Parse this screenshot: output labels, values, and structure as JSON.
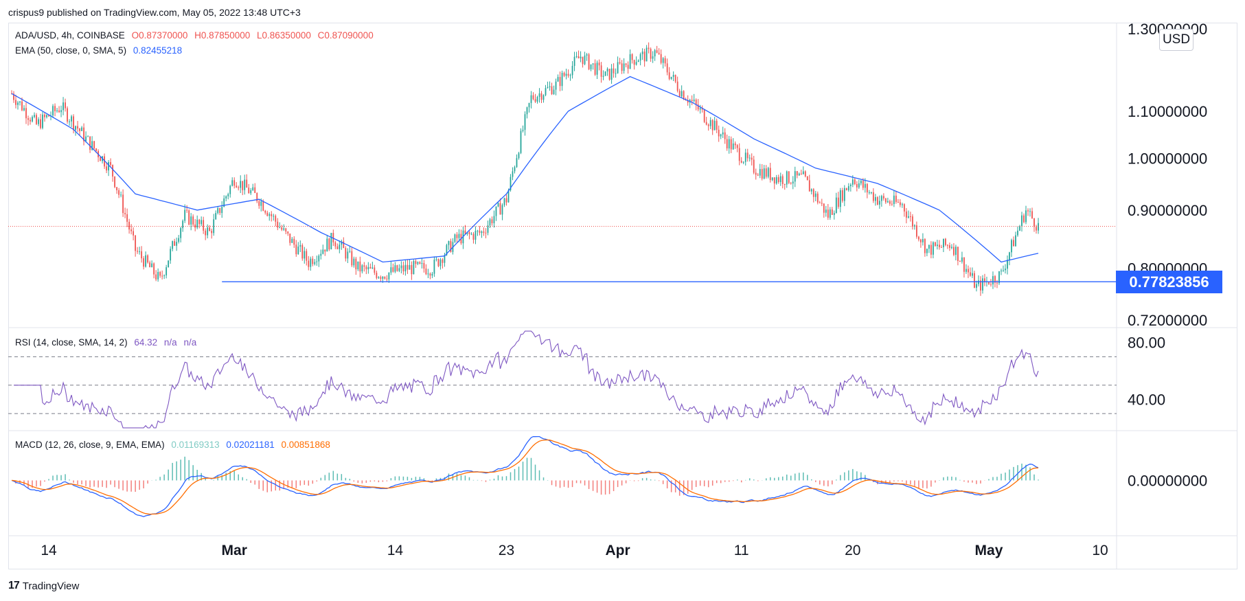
{
  "header": {
    "publisher_text": "crispus9 published on TradingView.com, May 05, 2022 13:48 UTC+3"
  },
  "legend": {
    "symbol": "ADA/USD, 4h, COINBASE",
    "open": "O0.87370000",
    "high": "H0.87850000",
    "low": "L0.86350000",
    "close": "C0.87090000",
    "ema_label": "EMA (50, close, 0, SMA, 5)",
    "ema_value": "0.82455218",
    "rsi_label": "RSI (14, close, SMA, 14, 2)",
    "rsi_value": "64.32",
    "rsi_na1": "n/a",
    "rsi_na2": "n/a",
    "macd_label": "MACD (12, 26, close, 9, EMA, EMA)",
    "macd_hist": "0.01169313",
    "macd_line": "0.02021181",
    "macd_signal": "0.00851868"
  },
  "currency_badge": "USD",
  "current_price_tag": "0.77823856",
  "brand": "TradingView",
  "colors": {
    "up": "#26a69a",
    "down": "#ef5350",
    "ema": "#2962ff",
    "rsi": "#7e57c2",
    "macd": "#2962ff",
    "signal": "#ff6d00",
    "hist_up": "#26a69a",
    "hist_down": "#ef5350"
  },
  "chart_data": [
    {
      "type": "candlestick",
      "symbol": "ADA/USD",
      "interval": "4h",
      "exchange": "COINBASE",
      "y_ticks": [
        "1.30000000",
        "1.10000000",
        "1.00000000",
        "0.90000000",
        "0.80000000",
        "0.72000000"
      ],
      "y_scale": "log",
      "ylim": [
        0.715,
        1.3
      ],
      "x_ticks": [
        "14",
        "Mar",
        "14",
        "23",
        "Apr",
        "11",
        "20",
        "May",
        "10"
      ],
      "horizontal_line": 0.77823856,
      "last_price": 0.8709,
      "series": [
        {
          "name": "ADA/USD close (approx.)",
          "x": [
            "Feb 11",
            "Feb 13",
            "Feb 15",
            "Feb 17",
            "Feb 19",
            "Feb 21",
            "Feb 23",
            "Feb 25",
            "Feb 27",
            "Mar 1",
            "Mar 3",
            "Mar 5",
            "Mar 7",
            "Mar 9",
            "Mar 11",
            "Mar 13",
            "Mar 15",
            "Mar 17",
            "Mar 19",
            "Mar 21",
            "Mar 23",
            "Mar 25",
            "Mar 27",
            "Mar 29",
            "Mar 31",
            "Apr 2",
            "Apr 4",
            "Apr 6",
            "Apr 8",
            "Apr 10",
            "Apr 12",
            "Apr 14",
            "Apr 16",
            "Apr 18",
            "Apr 20",
            "Apr 22",
            "Apr 24",
            "Apr 26",
            "Apr 28",
            "Apr 30",
            "May 2",
            "May 4",
            "May 5"
          ],
          "values": [
            1.14,
            1.07,
            1.11,
            1.04,
            0.98,
            0.83,
            0.78,
            0.89,
            0.86,
            0.96,
            0.92,
            0.86,
            0.81,
            0.85,
            0.8,
            0.79,
            0.8,
            0.8,
            0.85,
            0.86,
            0.92,
            1.13,
            1.16,
            1.23,
            1.18,
            1.22,
            1.24,
            1.15,
            1.09,
            1.03,
            0.98,
            0.96,
            0.96,
            0.89,
            0.96,
            0.92,
            0.91,
            0.83,
            0.84,
            0.77,
            0.79,
            0.9,
            0.871
          ]
        },
        {
          "name": "EMA 50 (approx.)",
          "x": [
            "Feb 11",
            "Feb 16",
            "Feb 21",
            "Feb 26",
            "Mar 3",
            "Mar 8",
            "Mar 13",
            "Mar 18",
            "Mar 23",
            "Mar 28",
            "Apr 2",
            "Apr 7",
            "Apr 12",
            "Apr 17",
            "Apr 22",
            "Apr 27",
            "May 2",
            "May 5"
          ],
          "values": [
            1.14,
            1.06,
            0.93,
            0.9,
            0.92,
            0.86,
            0.81,
            0.82,
            0.93,
            1.1,
            1.18,
            1.12,
            1.04,
            0.98,
            0.95,
            0.9,
            0.81,
            0.8246
          ]
        }
      ]
    },
    {
      "type": "line",
      "name": "RSI",
      "y_ticks": [
        "80.00",
        "40.00"
      ],
      "ylim": [
        18,
        90
      ],
      "bands": [
        70,
        50,
        30
      ],
      "last_value": 64.32
    },
    {
      "type": "line",
      "name": "MACD",
      "y_ticks": [
        "0.00000000"
      ],
      "last_macd": 0.02021181,
      "last_signal": 0.00851868,
      "last_histogram": 0.01169313
    }
  ]
}
